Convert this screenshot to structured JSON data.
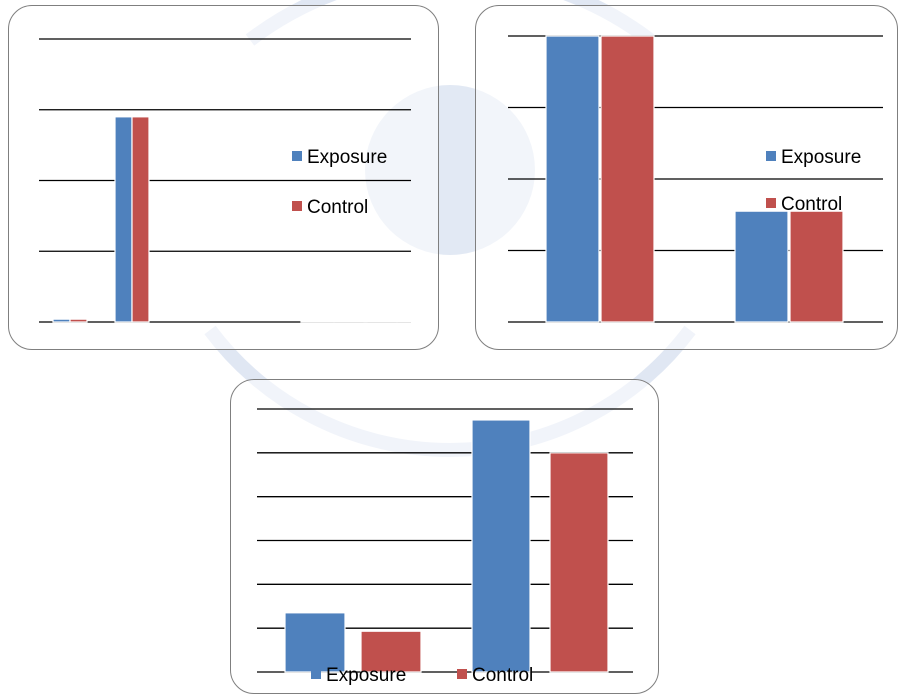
{
  "colors": {
    "exposure": "#4f81bd",
    "control": "#c0504d",
    "grid": "#000000",
    "watermark": "#c6d3ea"
  },
  "chart_data": [
    {
      "type": "bar",
      "title": "",
      "xlabel": "",
      "ylabel": "",
      "categories": [
        "",
        "",
        "",
        ""
      ],
      "series": [
        {
          "name": "Exposure",
          "values": [
            0.04,
            2.9,
            0.004,
            0.004
          ]
        },
        {
          "name": "Control",
          "values": [
            0.04,
            2.9,
            0.004,
            0.004
          ]
        }
      ],
      "ylim": [
        0,
        4
      ],
      "grid": true,
      "legend": "right"
    },
    {
      "type": "bar",
      "title": "",
      "xlabel": "",
      "ylabel": "",
      "categories": [
        "",
        ""
      ],
      "series": [
        {
          "name": "Exposure",
          "values": [
            4,
            1.55
          ]
        },
        {
          "name": "Control",
          "values": [
            4,
            1.55
          ]
        }
      ],
      "ylim": [
        0,
        4
      ],
      "grid": true,
      "legend": "right"
    },
    {
      "type": "bar",
      "title": "",
      "xlabel": "",
      "ylabel": "",
      "categories": [
        "",
        ""
      ],
      "series": [
        {
          "name": "Exposure",
          "values": [
            1.35,
            5.75
          ]
        },
        {
          "name": "Control",
          "values": [
            0.93,
            5
          ]
        }
      ],
      "ylim": [
        0,
        6
      ],
      "grid": true,
      "legend": "bottom"
    }
  ]
}
